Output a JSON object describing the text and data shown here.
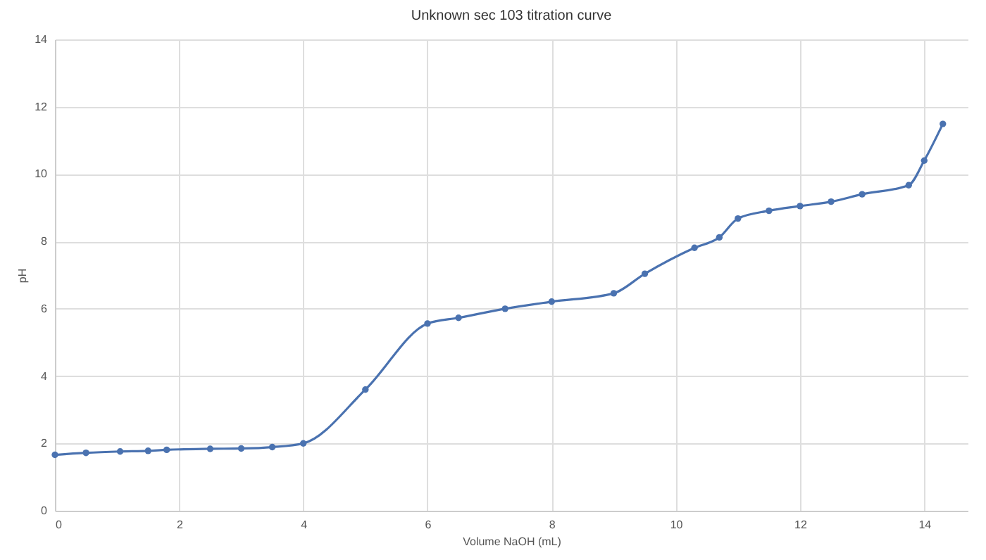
{
  "chart_data": {
    "type": "line",
    "title": "Unknown sec 103 titration curve",
    "xlabel": "Volume NaOH (mL)",
    "ylabel": "pH",
    "x": [
      0,
      0.5,
      1.05,
      1.5,
      1.8,
      2.5,
      3.0,
      3.5,
      4.0,
      5.0,
      6.0,
      6.5,
      7.25,
      8.0,
      9.0,
      9.5,
      10.3,
      10.7,
      11.0,
      11.5,
      12.0,
      12.5,
      13.0,
      13.75,
      14.0,
      14.3
    ],
    "series": [
      {
        "color": "#4a72b0",
        "values": [
          1.66,
          1.72,
          1.76,
          1.78,
          1.81,
          1.84,
          1.85,
          1.89,
          2.0,
          3.6,
          5.56,
          5.73,
          6.0,
          6.21,
          6.46,
          7.04,
          7.81,
          8.12,
          8.68,
          8.91,
          9.05,
          9.18,
          9.4,
          9.67,
          10.4,
          11.49
        ]
      }
    ],
    "xlim": [
      0,
      14.7
    ],
    "xticks": [
      0,
      2,
      4,
      6,
      8,
      10,
      12,
      14
    ],
    "ylim": [
      0,
      14
    ],
    "yticks": [
      0,
      2,
      4,
      6,
      8,
      10,
      12,
      14
    ],
    "grid": true,
    "marker": "circle",
    "line_style": "solid"
  }
}
